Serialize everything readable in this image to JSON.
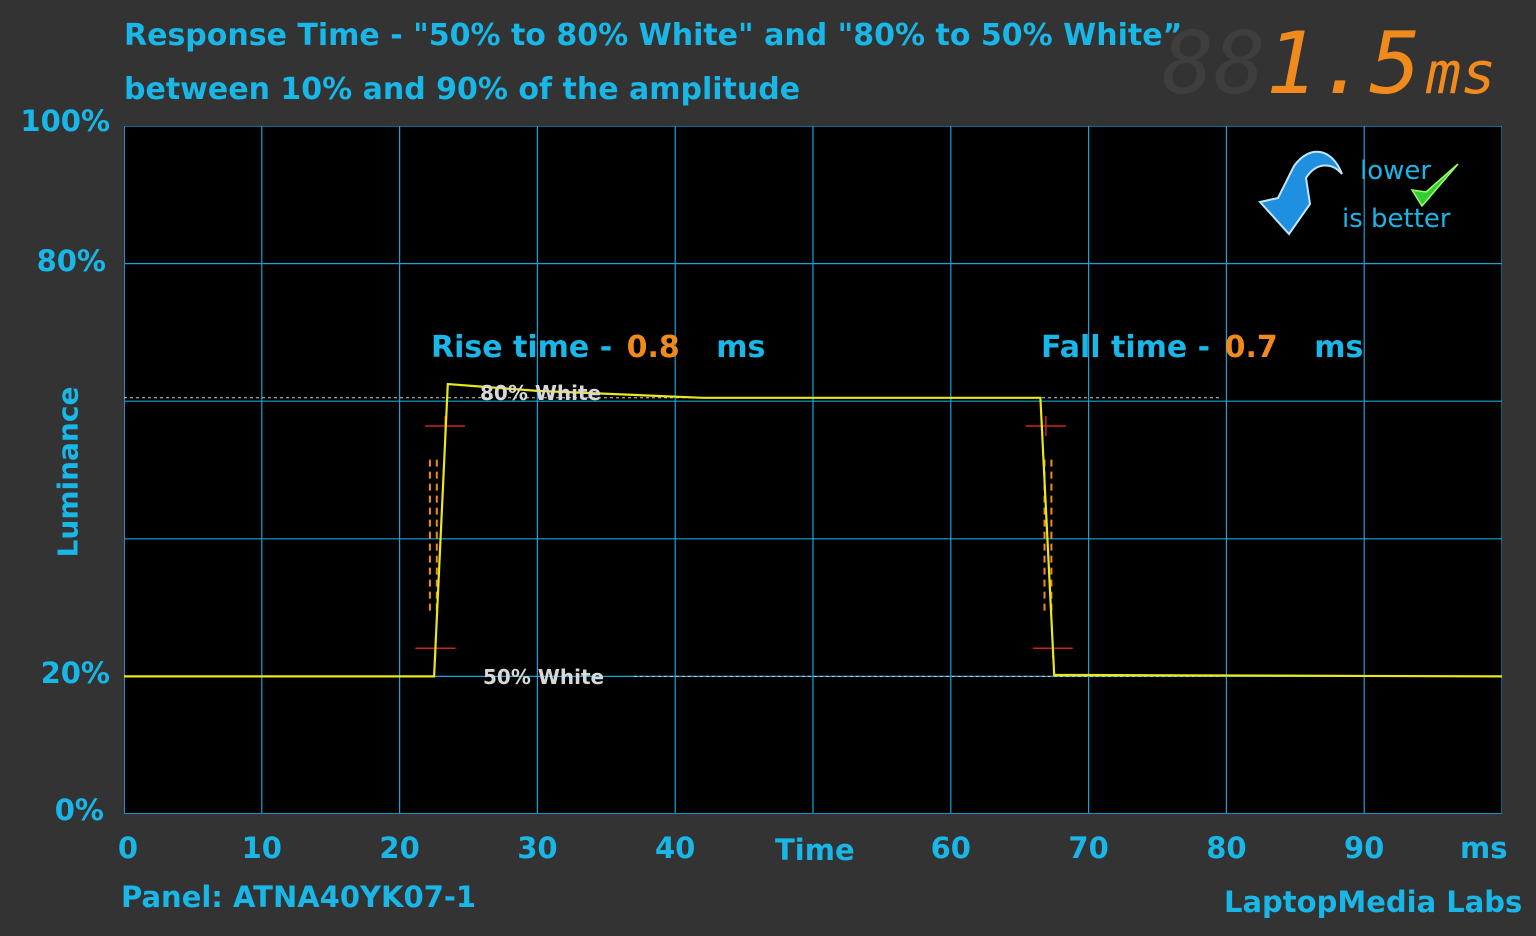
{
  "header": {
    "title_line1": "Response Time - \"50% to 80% White\" and \"80% to 50% White”",
    "title_line2": "between 10% and 90% of the amplitude"
  },
  "display": {
    "value": "1.5",
    "unit": "ms",
    "ghost": "88"
  },
  "badge": {
    "line1": "lower",
    "line2": "is better"
  },
  "annotations": {
    "rise_label": "Rise time -",
    "rise_value": "0.8",
    "rise_unit": "ms",
    "fall_label": "Fall time -",
    "fall_value": "0.7",
    "fall_unit": "ms"
  },
  "reference_labels": {
    "high": "80% White",
    "low": "50% White"
  },
  "footer": {
    "panel": "Panel: ATNA40YK07-1",
    "brand": "LaptopMedia Labs"
  },
  "colors": {
    "accent": "#19b6e8",
    "value": "#f08a1c",
    "trace": "#e8e81a",
    "grid": "#1aa3d6",
    "marker": "#cc2222"
  },
  "chart_data": {
    "type": "line",
    "xlabel": "Time",
    "xunit": "ms",
    "ylabel": "Luminance",
    "xlim": [
      0,
      100
    ],
    "ylim": [
      0,
      100
    ],
    "x_ticks": [
      "0",
      "10",
      "20",
      "30",
      "40",
      "60",
      "70",
      "80",
      "90"
    ],
    "y_ticks": [
      "0%",
      "20%",
      "80%",
      "100%"
    ],
    "grid": true,
    "series": [
      {
        "x": [
          0,
          22.5,
          23.5,
          30,
          42,
          66.5,
          67.5,
          70,
          100
        ],
        "y": [
          20,
          20,
          62.5,
          61.5,
          60.5,
          60.5,
          20.2,
          20.2,
          20
        ]
      }
    ],
    "reference_levels": [
      {
        "label": "80% White",
        "y": 60.5
      },
      {
        "label": "50% White",
        "y": 20
      }
    ]
  }
}
